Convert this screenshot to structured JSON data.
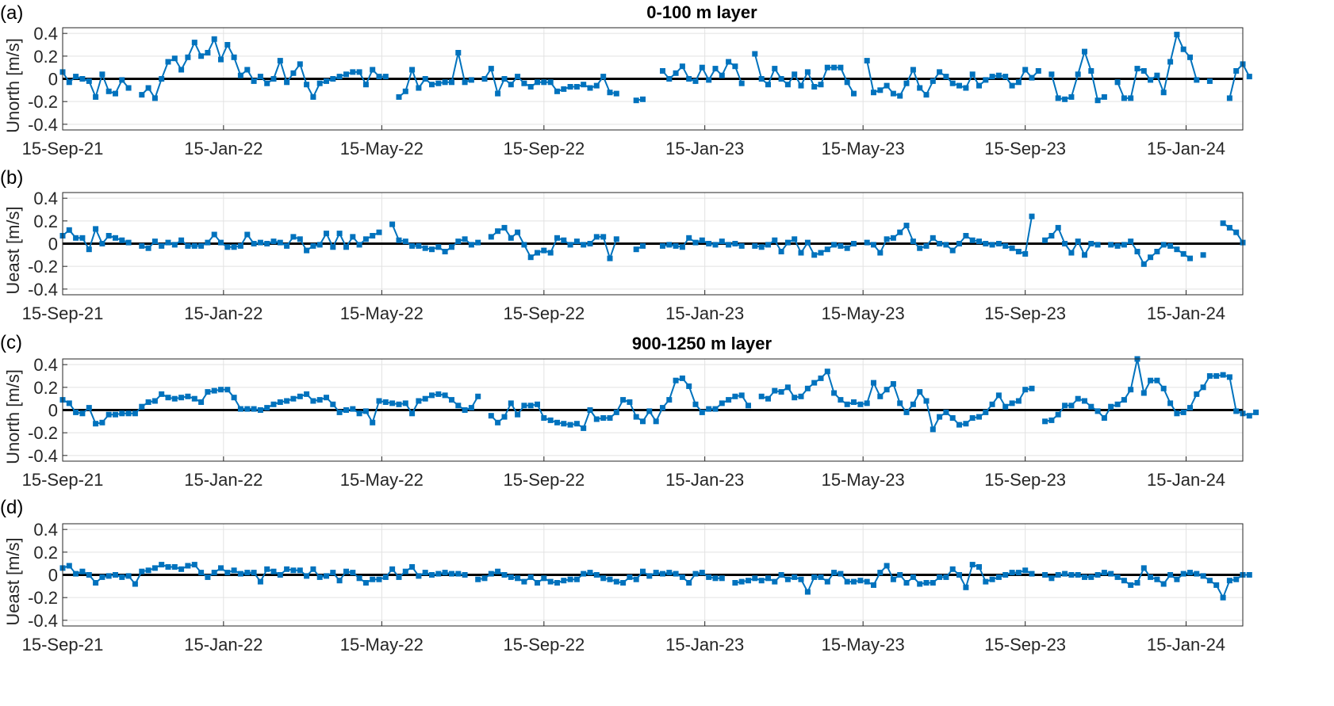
{
  "colors": {
    "series": "#0072BD",
    "zero_line": "#000000",
    "grid": "#e2e2e2",
    "axis": "#262626"
  },
  "x_ticks": [
    "15-Sep-21",
    "15-Jan-22",
    "15-May-22",
    "15-Sep-22",
    "15-Jan-23",
    "15-May-23",
    "15-Sep-23",
    "15-Jan-24"
  ],
  "x_tick_dates": [
    "2021-09-15",
    "2022-01-15",
    "2022-05-15",
    "2022-09-15",
    "2023-01-15",
    "2023-05-15",
    "2023-09-15",
    "2024-01-15"
  ],
  "x_range": [
    "2021-09-15",
    "2024-02-27"
  ],
  "y_ticks": [
    "0.4",
    "0.2",
    "0",
    "-0.2",
    "-0.4"
  ],
  "chart_data": [
    {
      "panel": "(a)",
      "type": "line",
      "title": "0-100 m layer",
      "ylabel": "Unorth [m/s]",
      "ylim": [
        -0.45,
        0.45
      ],
      "grid": true,
      "marker": "square",
      "start_date": "2021-09-15",
      "step_days": 5,
      "values": [
        0.06,
        -0.03,
        0.02,
        0.0,
        -0.02,
        -0.16,
        0.04,
        -0.11,
        -0.13,
        -0.01,
        -0.08,
        null,
        -0.14,
        -0.08,
        -0.17,
        0.0,
        0.15,
        0.18,
        0.08,
        0.19,
        0.32,
        0.2,
        0.23,
        0.35,
        0.17,
        0.3,
        0.19,
        0.03,
        0.08,
        -0.02,
        0.02,
        -0.04,
        0.0,
        0.16,
        -0.03,
        0.05,
        0.13,
        -0.05,
        -0.16,
        -0.04,
        -0.02,
        0.0,
        0.02,
        0.04,
        0.06,
        0.06,
        -0.05,
        0.08,
        0.02,
        0.02,
        null,
        -0.16,
        -0.11,
        0.08,
        -0.08,
        0.0,
        -0.05,
        -0.04,
        -0.03,
        -0.03,
        0.23,
        -0.03,
        -0.01,
        null,
        0.0,
        0.09,
        -0.13,
        0.0,
        -0.05,
        0.02,
        -0.04,
        -0.07,
        -0.03,
        -0.03,
        -0.03,
        -0.11,
        -0.09,
        -0.07,
        -0.07,
        -0.05,
        -0.08,
        -0.06,
        0.02,
        -0.12,
        -0.13,
        null,
        null,
        -0.19,
        -0.18,
        null,
        null,
        0.07,
        0.0,
        0.05,
        0.11,
        0.0,
        -0.02,
        0.1,
        -0.01,
        0.09,
        0.03,
        0.15,
        0.11,
        -0.04,
        null,
        0.22,
        0.0,
        -0.05,
        0.09,
        0.0,
        -0.05,
        0.04,
        -0.06,
        0.06,
        -0.07,
        -0.05,
        0.1,
        0.1,
        0.1,
        -0.03,
        -0.13,
        null,
        0.16,
        -0.12,
        -0.1,
        -0.06,
        -0.13,
        -0.15,
        -0.04,
        0.08,
        -0.08,
        -0.14,
        -0.02,
        0.06,
        0.02,
        -0.04,
        -0.06,
        -0.08,
        0.04,
        -0.06,
        -0.01,
        0.02,
        0.03,
        0.02,
        -0.06,
        -0.03,
        0.08,
        0.01,
        0.07,
        null,
        0.04,
        -0.17,
        -0.18,
        -0.16,
        0.04,
        0.24,
        0.07,
        -0.19,
        -0.16,
        null,
        -0.03,
        -0.17,
        -0.17,
        0.09,
        0.07,
        -0.01,
        0.03,
        -0.12,
        0.15,
        0.39,
        0.26,
        0.19,
        -0.01,
        null,
        -0.02,
        null,
        null,
        -0.17,
        0.07,
        0.13,
        0.02
      ]
    },
    {
      "panel": "(b)",
      "type": "line",
      "title": "",
      "ylabel": "Ueast [m/s]",
      "ylim": [
        -0.45,
        0.45
      ],
      "grid": true,
      "marker": "square",
      "start_date": "2021-09-15",
      "step_days": 5,
      "values": [
        0.07,
        0.12,
        0.05,
        0.05,
        -0.05,
        0.13,
        0.0,
        0.07,
        0.05,
        0.03,
        0.01,
        null,
        -0.02,
        -0.04,
        0.02,
        -0.02,
        0.01,
        -0.01,
        0.03,
        -0.02,
        -0.02,
        -0.02,
        0.01,
        0.08,
        0.01,
        -0.03,
        -0.03,
        -0.02,
        0.08,
        0.0,
        0.01,
        0.0,
        0.02,
        0.01,
        -0.02,
        0.06,
        0.04,
        -0.06,
        -0.02,
        -0.01,
        0.09,
        -0.03,
        0.09,
        -0.03,
        0.06,
        -0.01,
        0.04,
        0.07,
        0.1,
        null,
        0.17,
        0.03,
        0.02,
        -0.02,
        -0.02,
        -0.04,
        -0.05,
        -0.03,
        -0.07,
        -0.03,
        0.02,
        0.04,
        -0.01,
        0.01,
        null,
        0.06,
        0.11,
        0.14,
        0.05,
        0.1,
        -0.01,
        -0.12,
        -0.08,
        -0.06,
        -0.08,
        0.05,
        0.03,
        -0.01,
        0.02,
        -0.01,
        0.0,
        0.06,
        0.06,
        -0.13,
        0.04,
        null,
        null,
        -0.05,
        -0.02,
        null,
        null,
        -0.02,
        -0.01,
        -0.02,
        -0.03,
        0.05,
        0.01,
        0.03,
        0.0,
        -0.01,
        0.02,
        -0.01,
        0.0,
        -0.02,
        null,
        -0.02,
        -0.03,
        -0.01,
        0.03,
        -0.07,
        0.01,
        0.04,
        -0.08,
        0.01,
        -0.1,
        -0.08,
        -0.05,
        -0.01,
        -0.02,
        -0.04,
        0.0,
        null,
        0.01,
        -0.01,
        -0.08,
        0.04,
        0.05,
        0.1,
        0.16,
        0.02,
        -0.04,
        -0.02,
        0.05,
        0.0,
        -0.01,
        -0.06,
        0.0,
        0.07,
        0.03,
        0.02,
        0.0,
        -0.01,
        0.0,
        -0.02,
        -0.04,
        -0.07,
        -0.09,
        0.24,
        null,
        0.03,
        0.07,
        0.14,
        0.0,
        -0.08,
        0.02,
        -0.1,
        0.0,
        -0.01,
        null,
        -0.01,
        -0.02,
        -0.01,
        0.02,
        -0.07,
        -0.18,
        -0.12,
        -0.07,
        -0.01,
        -0.02,
        -0.05,
        -0.09,
        -0.13,
        null,
        -0.1,
        null,
        null,
        0.18,
        0.14,
        0.1,
        0.01
      ]
    },
    {
      "panel": "(c)",
      "type": "line",
      "title": "900-1250 m layer",
      "ylabel": "Unorth [m/s]",
      "ylim": [
        -0.45,
        0.45
      ],
      "grid": true,
      "marker": "square",
      "start_date": "2021-09-15",
      "step_days": 5,
      "values": [
        0.09,
        0.06,
        -0.02,
        -0.03,
        0.02,
        -0.12,
        -0.11,
        -0.04,
        -0.04,
        -0.03,
        -0.03,
        -0.03,
        0.03,
        0.07,
        0.08,
        0.14,
        0.11,
        0.1,
        0.11,
        0.12,
        0.1,
        0.07,
        0.16,
        0.17,
        0.18,
        0.18,
        0.11,
        0.01,
        0.01,
        0.01,
        0.0,
        0.02,
        0.05,
        0.07,
        0.08,
        0.1,
        0.12,
        0.14,
        0.08,
        0.09,
        0.11,
        0.05,
        -0.02,
        0.0,
        0.01,
        -0.03,
        -0.01,
        -0.11,
        0.08,
        0.07,
        0.06,
        0.05,
        0.06,
        -0.03,
        0.08,
        0.1,
        0.13,
        0.14,
        0.13,
        0.09,
        0.04,
        0.0,
        0.02,
        0.12,
        null,
        -0.05,
        -0.11,
        -0.06,
        0.06,
        -0.04,
        0.04,
        0.04,
        0.05,
        -0.07,
        -0.09,
        -0.11,
        -0.12,
        -0.13,
        -0.12,
        -0.16,
        0.0,
        -0.08,
        -0.07,
        -0.07,
        -0.02,
        0.09,
        0.07,
        -0.06,
        -0.1,
        -0.01,
        -0.1,
        0.02,
        0.09,
        0.26,
        0.28,
        0.21,
        0.05,
        -0.02,
        0.01,
        0.01,
        0.06,
        0.09,
        0.12,
        0.13,
        0.04,
        null,
        0.12,
        0.1,
        0.17,
        0.16,
        0.2,
        0.11,
        0.12,
        0.19,
        0.24,
        0.28,
        0.34,
        0.15,
        0.09,
        0.05,
        0.07,
        0.05,
        0.06,
        0.24,
        0.12,
        0.18,
        0.23,
        0.06,
        -0.02,
        0.05,
        0.16,
        0.08,
        -0.17,
        -0.06,
        -0.02,
        -0.07,
        -0.13,
        -0.12,
        -0.07,
        -0.06,
        -0.02,
        0.05,
        0.13,
        0.03,
        0.06,
        0.08,
        0.18,
        0.19,
        null,
        -0.1,
        -0.09,
        -0.04,
        0.04,
        0.04,
        0.1,
        0.08,
        0.03,
        -0.01,
        -0.07,
        0.03,
        0.05,
        0.09,
        0.18,
        0.45,
        0.15,
        0.26,
        0.26,
        0.19,
        0.06,
        -0.03,
        -0.02,
        0.02,
        0.14,
        0.2,
        0.3,
        0.3,
        0.31,
        0.29,
        -0.01,
        -0.03,
        -0.05,
        -0.02
      ]
    },
    {
      "panel": "(d)",
      "type": "line",
      "title": "",
      "ylabel": "Ueast [m/s]",
      "ylim": [
        -0.45,
        0.45
      ],
      "grid": true,
      "marker": "square",
      "start_date": "2021-09-15",
      "step_days": 5,
      "values": [
        0.06,
        0.08,
        0.01,
        0.03,
        0.0,
        -0.07,
        -0.02,
        -0.01,
        0.0,
        -0.02,
        -0.01,
        -0.08,
        0.03,
        0.04,
        0.06,
        0.09,
        0.07,
        0.07,
        0.05,
        0.08,
        0.09,
        0.02,
        -0.02,
        0.02,
        0.06,
        0.02,
        0.04,
        0.01,
        0.02,
        0.02,
        -0.06,
        0.05,
        0.03,
        0.0,
        0.05,
        0.04,
        0.04,
        -0.01,
        0.05,
        -0.02,
        -0.01,
        0.02,
        -0.05,
        0.03,
        0.02,
        -0.03,
        -0.07,
        -0.04,
        -0.04,
        -0.02,
        0.05,
        -0.02,
        0.03,
        0.07,
        -0.01,
        0.02,
        0.0,
        0.01,
        0.02,
        0.01,
        0.01,
        0.0,
        null,
        -0.04,
        -0.03,
        0.01,
        0.03,
        0.0,
        -0.02,
        -0.03,
        -0.06,
        -0.02,
        -0.07,
        -0.03,
        -0.06,
        -0.07,
        -0.05,
        -0.04,
        -0.04,
        0.01,
        0.02,
        0.0,
        -0.03,
        -0.04,
        -0.06,
        -0.07,
        -0.02,
        -0.04,
        0.03,
        -0.01,
        0.02,
        0.01,
        0.02,
        0.01,
        -0.02,
        -0.07,
        0.01,
        0.02,
        -0.02,
        -0.03,
        -0.03,
        null,
        -0.07,
        -0.06,
        -0.05,
        -0.03,
        -0.05,
        -0.03,
        -0.06,
        0.0,
        -0.04,
        -0.02,
        -0.04,
        -0.15,
        -0.02,
        -0.02,
        -0.06,
        0.02,
        0.01,
        -0.06,
        -0.06,
        -0.05,
        -0.06,
        -0.09,
        0.02,
        0.08,
        -0.04,
        0.0,
        -0.07,
        -0.02,
        -0.08,
        -0.07,
        -0.07,
        -0.02,
        -0.02,
        0.05,
        0.0,
        -0.11,
        0.09,
        0.07,
        -0.06,
        -0.04,
        -0.02,
        0.0,
        0.02,
        0.02,
        0.04,
        0.01,
        null,
        0.0,
        -0.03,
        0.0,
        0.01,
        0.0,
        0.0,
        -0.02,
        -0.02,
        0.0,
        0.02,
        0.01,
        -0.02,
        -0.05,
        -0.09,
        -0.07,
        0.06,
        -0.02,
        -0.04,
        -0.08,
        0.0,
        -0.04,
        0.01,
        0.02,
        0.01,
        -0.01,
        -0.05,
        -0.09,
        -0.2,
        -0.05,
        -0.04,
        0.0,
        0.0
      ]
    }
  ]
}
